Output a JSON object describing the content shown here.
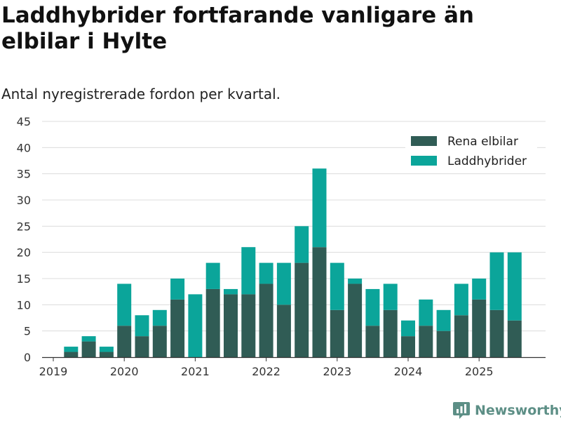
{
  "title": "Laddhybrider fortfarande vanligare än elbilar i Hylte",
  "subtitle": "Antal nyregistrerade fordon per kvartal.",
  "brand": {
    "name": "Newsworthy",
    "icon": "newsworthy-logo-icon"
  },
  "colors": {
    "series1": "#305c55",
    "series2": "#0ba59a",
    "grid": "#dcdcdc",
    "axis": "#333333"
  },
  "chart_data": {
    "type": "bar",
    "stacked": true,
    "title": "Laddhybrider fortfarande vanligare än elbilar i Hylte",
    "subtitle": "Antal nyregistrerade fordon per kvartal.",
    "xlabel": "",
    "ylabel": "",
    "ylim": [
      0,
      45
    ],
    "yticks": [
      0,
      5,
      10,
      15,
      20,
      25,
      30,
      35,
      40,
      45
    ],
    "grid": true,
    "legend": "top-right",
    "categories": [
      "2019-Q1",
      "2019-Q2",
      "2019-Q3",
      "2019-Q4",
      "2020-Q1",
      "2020-Q2",
      "2020-Q3",
      "2020-Q4",
      "2021-Q1",
      "2021-Q2",
      "2021-Q3",
      "2021-Q4",
      "2022-Q1",
      "2022-Q2",
      "2022-Q3",
      "2022-Q4",
      "2023-Q1",
      "2023-Q2",
      "2023-Q3",
      "2023-Q4",
      "2024-Q1",
      "2024-Q2",
      "2024-Q3",
      "2024-Q4",
      "2025-Q1",
      "2025-Q2",
      "2025-Q3"
    ],
    "xtick_labels": [
      "2019",
      "2020",
      "2021",
      "2022",
      "2023",
      "2024",
      "2025"
    ],
    "xtick_positions": [
      0,
      4,
      8,
      12,
      16,
      20,
      24
    ],
    "series": [
      {
        "name": "Rena elbilar",
        "values": [
          0,
          1,
          3,
          1,
          6,
          4,
          6,
          11,
          0,
          13,
          12,
          12,
          14,
          10,
          18,
          21,
          9,
          14,
          6,
          9,
          4,
          6,
          5,
          8,
          11,
          9,
          7
        ]
      },
      {
        "name": "Laddhybrider",
        "values": [
          0,
          1,
          1,
          1,
          8,
          4,
          3,
          4,
          12,
          5,
          1,
          9,
          4,
          8,
          7,
          15,
          9,
          1,
          7,
          5,
          3,
          5,
          4,
          6,
          4,
          11,
          13
        ]
      }
    ]
  }
}
